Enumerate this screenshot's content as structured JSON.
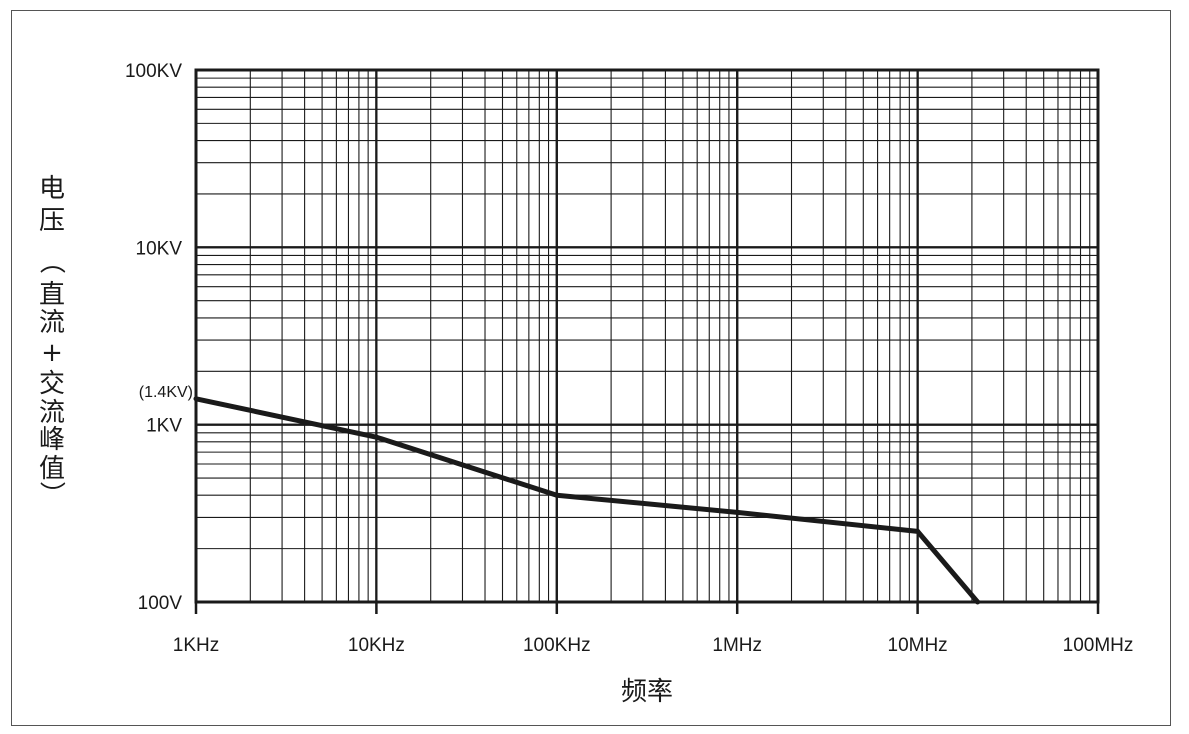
{
  "chart_data": {
    "type": "line",
    "x_scale": "log",
    "y_scale": "log",
    "xlim": [
      1000,
      100000000
    ],
    "ylim": [
      100,
      100000
    ],
    "grid": true,
    "xlabel": "频率",
    "ylabel_chars": [
      "电",
      "压",
      "（",
      "直",
      "流",
      "+",
      "交",
      "流",
      "峰",
      "值",
      "）"
    ],
    "x_ticks": [
      {
        "value": 1000,
        "label": "1KHz"
      },
      {
        "value": 10000,
        "label": "10KHz"
      },
      {
        "value": 100000,
        "label": "100KHz"
      },
      {
        "value": 1000000,
        "label": "1MHz"
      },
      {
        "value": 10000000,
        "label": "10MHz"
      },
      {
        "value": 100000000,
        "label": "100MHz"
      }
    ],
    "y_ticks": [
      {
        "value": 100,
        "label": "100V"
      },
      {
        "value": 1000,
        "label": "1KV"
      },
      {
        "value": 10000,
        "label": "10KV"
      },
      {
        "value": 100000,
        "label": "100KV"
      }
    ],
    "annotation": {
      "value": 1400,
      "label": "(1.4KV)"
    },
    "series": [
      {
        "x": [
          1000,
          10000,
          100000,
          1000000,
          10000000,
          21500000
        ],
        "y": [
          1400,
          850,
          400,
          320,
          250,
          100
        ]
      }
    ],
    "colors": {
      "line": "#1a1a1a",
      "grid": "#1a1a1a",
      "frame": "#555555"
    }
  }
}
